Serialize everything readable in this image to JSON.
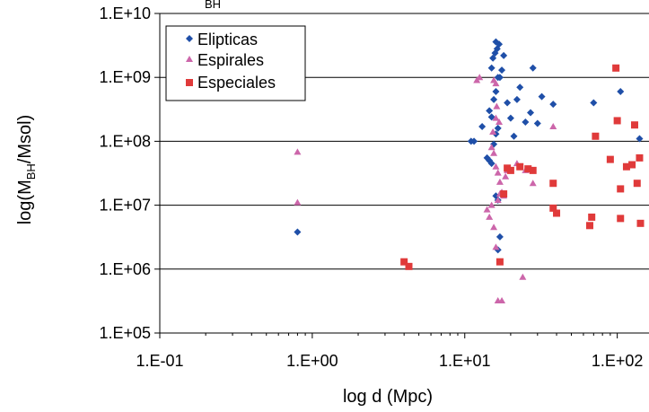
{
  "chart_data": {
    "type": "scatter",
    "title": "",
    "xlabel": "log d (Mpc)",
    "ylabel": "log(M_BH/Msol)",
    "ylabel_parts": [
      "log(M",
      "BH",
      "/Msol)"
    ],
    "title_fragment": "BH",
    "x_scale": "log",
    "y_scale": "log",
    "xlim": [
      0.1,
      150
    ],
    "ylim": [
      100000,
      10000000000
    ],
    "x_ticks": [
      0.1,
      1,
      10,
      100
    ],
    "x_tick_labels": [
      "1.E-01",
      "1.E+00",
      "1.E+01",
      "1.E+02"
    ],
    "y_ticks": [
      100000,
      1000000,
      10000000,
      100000000,
      1000000000,
      10000000000
    ],
    "y_tick_labels": [
      "1.E+05",
      "1.E+06",
      "1.E+07",
      "1.E+08",
      "1.E+09",
      "1.E+10"
    ],
    "grid": "horizontal",
    "legend_position": "top-left",
    "series": [
      {
        "name": "Elipticas",
        "marker": "diamond",
        "color": "#1f4fa8",
        "points": [
          [
            0.8,
            3800000.0
          ],
          [
            11,
            100000000.0
          ],
          [
            11.5,
            100000000.0
          ],
          [
            13,
            170000000.0
          ],
          [
            14,
            55000000.0
          ],
          [
            14.5,
            50000000.0
          ],
          [
            15,
            45000000.0
          ],
          [
            15.5,
            90000000.0
          ],
          [
            16,
            130000000.0
          ],
          [
            16.5,
            160000000.0
          ],
          [
            15,
            240000000.0
          ],
          [
            14.5,
            300000000.0
          ],
          [
            15.5,
            450000000.0
          ],
          [
            16,
            600000000.0
          ],
          [
            16.5,
            1000000000.0
          ],
          [
            15,
            1400000000.0
          ],
          [
            15.3,
            2000000000.0
          ],
          [
            15.8,
            2400000000.0
          ],
          [
            16.3,
            2800000000.0
          ],
          [
            16.8,
            3300000000.0
          ],
          [
            16.0,
            3600000000.0
          ],
          [
            17,
            1000000000.0
          ],
          [
            17.5,
            1300000000.0
          ],
          [
            18,
            2200000000.0
          ],
          [
            16,
            14000000.0
          ],
          [
            16.5,
            12000000.0
          ],
          [
            17,
            3200000.0
          ],
          [
            16.5,
            2000000.0
          ],
          [
            19,
            400000000.0
          ],
          [
            20,
            230000000.0
          ],
          [
            21,
            120000000.0
          ],
          [
            22,
            450000000.0
          ],
          [
            23,
            700000000.0
          ],
          [
            25,
            200000000.0
          ],
          [
            27,
            280000000.0
          ],
          [
            28,
            1400000000.0
          ],
          [
            30,
            190000000.0
          ],
          [
            32,
            500000000.0
          ],
          [
            38,
            380000000.0
          ],
          [
            70,
            400000000.0
          ],
          [
            105,
            600000000.0
          ],
          [
            140,
            110000000.0
          ]
        ]
      },
      {
        "name": "Espirales",
        "marker": "triangle",
        "color": "#cc66aa",
        "points": [
          [
            0.8,
            68000000.0
          ],
          [
            0.8,
            11000000.0
          ],
          [
            12,
            900000000.0
          ],
          [
            12.5,
            1000000000.0
          ],
          [
            14,
            8500000.0
          ],
          [
            14.5,
            6500000.0
          ],
          [
            15,
            10000000.0
          ],
          [
            15.5,
            4500000.0
          ],
          [
            16,
            2200000.0
          ],
          [
            16.5,
            12000000.0
          ],
          [
            15,
            80000000.0
          ],
          [
            15.5,
            65000000.0
          ],
          [
            16,
            40000000.0
          ],
          [
            16.5,
            32000000.0
          ],
          [
            17,
            23000000.0
          ],
          [
            15.3,
            140000000.0
          ],
          [
            16,
            230000000.0
          ],
          [
            16.8,
            200000000.0
          ],
          [
            16.2,
            350000000.0
          ],
          [
            17,
            15000000.0
          ],
          [
            17.5,
            16000000.0
          ],
          [
            18,
            14000000.0
          ],
          [
            18.5,
            28000000.0
          ],
          [
            19,
            35000000.0
          ],
          [
            15.5,
            900000000.0
          ],
          [
            16,
            800000000.0
          ],
          [
            16.5,
            320000.0
          ],
          [
            17.5,
            320000.0
          ],
          [
            24,
            750000.0
          ],
          [
            22,
            45000000.0
          ],
          [
            25,
            35000000.0
          ],
          [
            28,
            22000000.0
          ],
          [
            38,
            170000000.0
          ]
        ]
      },
      {
        "name": "Especiales",
        "marker": "square",
        "color": "#e03a3a",
        "points": [
          [
            4.0,
            1300000.0
          ],
          [
            4.3,
            1100000.0
          ],
          [
            17,
            1300000.0
          ],
          [
            18,
            15000000.0
          ],
          [
            19,
            38000000.0
          ],
          [
            20,
            35000000.0
          ],
          [
            23,
            40000000.0
          ],
          [
            26,
            37000000.0
          ],
          [
            28,
            35000000.0
          ],
          [
            38,
            22000000.0
          ],
          [
            38,
            9000000.0
          ],
          [
            40,
            7500000.0
          ],
          [
            68,
            6500000.0
          ],
          [
            66,
            4800000.0
          ],
          [
            72,
            120000000.0
          ],
          [
            90,
            52000000.0
          ],
          [
            98,
            1400000000.0
          ],
          [
            100,
            210000000.0
          ],
          [
            105,
            18000000.0
          ],
          [
            105,
            6200000.0
          ],
          [
            115,
            40000000.0
          ],
          [
            125,
            43000000.0
          ],
          [
            130,
            180000000.0
          ],
          [
            135,
            22000000.0
          ],
          [
            140,
            55000000.0
          ],
          [
            142,
            5200000.0
          ]
        ]
      }
    ]
  }
}
